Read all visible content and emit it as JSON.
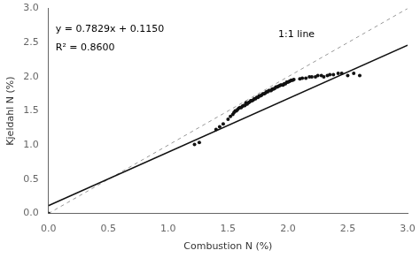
{
  "chart_data": {
    "type": "scatter",
    "xlabel": "Combustion N (%)",
    "ylabel": "Kjeldahl N (%)",
    "xlim": [
      0,
      3.0
    ],
    "ylim": [
      0,
      3.0
    ],
    "xticks": [
      {
        "value": 0.0,
        "label": "0.0"
      },
      0.5,
      {
        "value": 1.0,
        "label": "1.0"
      },
      1.5,
      {
        "value": 2.0,
        "label": "2.0"
      },
      2.5,
      {
        "value": 3.0,
        "label": "3.0"
      }
    ],
    "yticks": [
      {
        "value": 0.0,
        "label": "0.0"
      },
      0.5,
      {
        "value": 1.0,
        "label": "1.0"
      },
      1.5,
      {
        "value": 2.0,
        "label": "2.0"
      },
      2.5,
      {
        "value": 3.0,
        "label": "3.0"
      }
    ],
    "grid": false,
    "annotations": [
      "y = 0.7829x + 0.1150",
      "R² = 0.8600",
      "1:1 line"
    ],
    "series": [
      {
        "type": "scatter",
        "color": "#111111",
        "x": [
          0.0,
          1.22,
          1.26,
          1.4,
          1.43,
          1.46,
          1.5,
          1.52,
          1.54,
          1.55,
          1.56,
          1.57,
          1.58,
          1.59,
          1.6,
          1.61,
          1.62,
          1.63,
          1.64,
          1.65,
          1.65,
          1.66,
          1.67,
          1.68,
          1.69,
          1.7,
          1.71,
          1.72,
          1.73,
          1.74,
          1.75,
          1.76,
          1.77,
          1.78,
          1.79,
          1.8,
          1.81,
          1.82,
          1.83,
          1.84,
          1.85,
          1.86,
          1.87,
          1.88,
          1.89,
          1.9,
          1.91,
          1.92,
          1.93,
          1.94,
          1.95,
          1.96,
          1.97,
          1.98,
          1.99,
          2.0,
          2.01,
          2.02,
          2.03,
          2.04,
          2.05,
          2.1,
          2.12,
          2.15,
          2.18,
          2.2,
          2.23,
          2.25,
          2.28,
          2.3,
          2.33,
          2.35,
          2.38,
          2.42,
          2.45,
          2.5,
          2.55,
          2.6
        ],
        "values": [
          0.0,
          1.01,
          1.04,
          1.23,
          1.27,
          1.31,
          1.38,
          1.42,
          1.45,
          1.48,
          1.5,
          1.5,
          1.52,
          1.54,
          1.55,
          1.55,
          1.57,
          1.58,
          1.58,
          1.6,
          1.62,
          1.6,
          1.62,
          1.63,
          1.65,
          1.65,
          1.66,
          1.68,
          1.68,
          1.7,
          1.7,
          1.72,
          1.72,
          1.73,
          1.75,
          1.75,
          1.76,
          1.78,
          1.78,
          1.8,
          1.8,
          1.8,
          1.82,
          1.82,
          1.83,
          1.85,
          1.85,
          1.86,
          1.87,
          1.88,
          1.88,
          1.88,
          1.9,
          1.9,
          1.92,
          1.92,
          1.93,
          1.94,
          1.95,
          1.95,
          1.96,
          1.97,
          1.98,
          1.98,
          2.0,
          2.0,
          2.0,
          2.02,
          2.02,
          2.0,
          2.02,
          2.03,
          2.03,
          2.05,
          2.05,
          2.02,
          2.05,
          2.02
        ]
      },
      {
        "type": "line",
        "color": "#111111",
        "line_style": "solid",
        "x": [
          0.0,
          3.0
        ],
        "values": [
          0.115,
          2.4637
        ]
      },
      {
        "type": "line",
        "color": "#999999",
        "line_style": "dashed",
        "x": [
          0,
          3.0
        ],
        "values": [
          0,
          3.0
        ]
      }
    ]
  }
}
